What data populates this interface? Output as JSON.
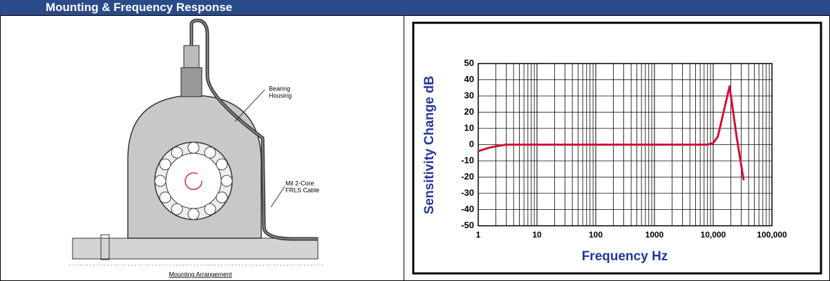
{
  "header": {
    "title": "Mounting & Frequency Response"
  },
  "diagram": {
    "housing_label": [
      "Bearing",
      "Housing"
    ],
    "cable_label": [
      "Mil 2-Core",
      "FRLS Cable"
    ],
    "caption": "Mounting Arrangement"
  },
  "chart_data": {
    "type": "line",
    "xscale": "log",
    "xlabel": "Frequency Hz",
    "ylabel": "Sensitivity Change dB",
    "xlim": [
      1,
      100000
    ],
    "ylim": [
      -50,
      50
    ],
    "xticks": [
      1,
      10,
      100,
      1000,
      {
        "value": 10000,
        "label": "10,000"
      },
      {
        "value": 100000,
        "label": "100,000"
      }
    ],
    "yticks": [
      50,
      40,
      30,
      20,
      10,
      0,
      -10,
      -20,
      -30,
      -40,
      -50
    ],
    "grid": true,
    "minor_grid": true,
    "x": [
      1,
      1.5,
      2,
      3,
      5,
      10,
      100,
      1000,
      8000,
      10000,
      12000,
      15000,
      19000,
      25000,
      33000
    ],
    "series": [
      {
        "color": "#d0103a",
        "values": [
          -4,
          -2,
          -1,
          0,
          0,
          0,
          0,
          0,
          0,
          1,
          5,
          20,
          36,
          5,
          -22
        ]
      }
    ]
  }
}
